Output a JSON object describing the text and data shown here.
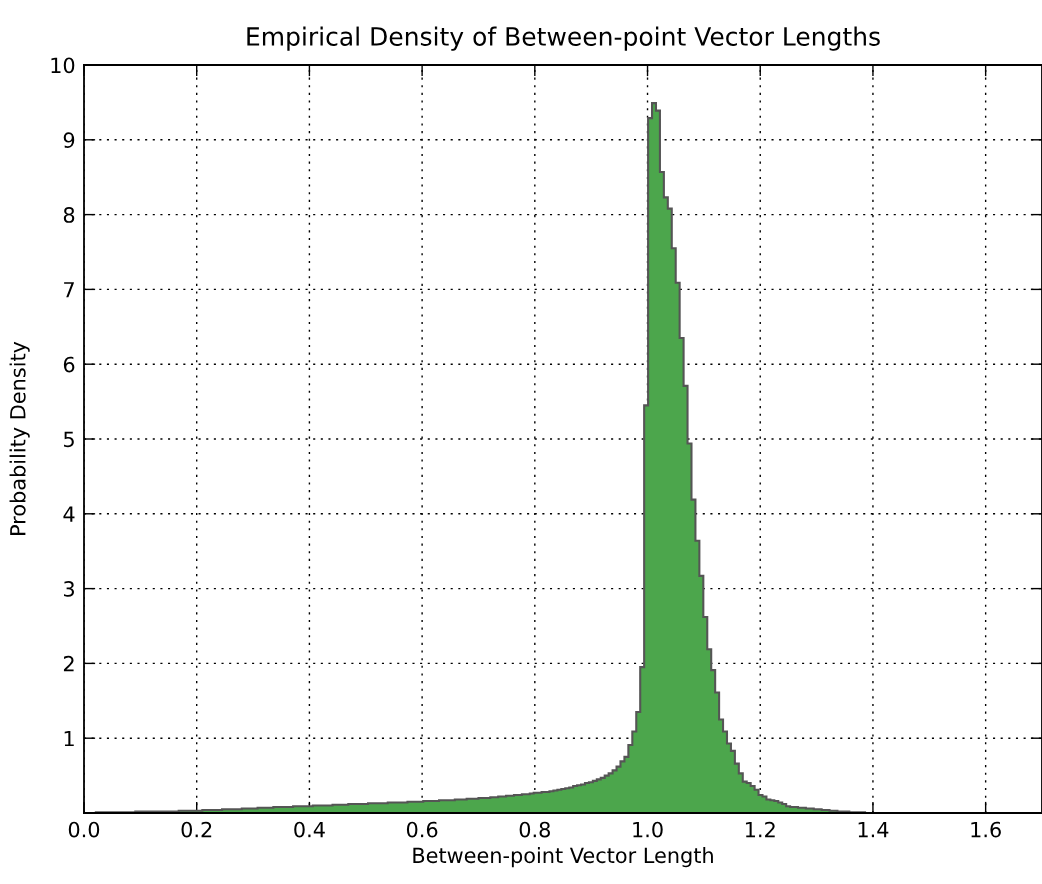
{
  "chart_data": {
    "type": "histogram",
    "title": "Empirical Density of Between-point Vector Lengths",
    "xlabel": "Between-point Vector Length",
    "ylabel": "Probability Density",
    "color": "#4ca64c",
    "grid": true,
    "xlim": [
      0,
      1.7
    ],
    "ylim": [
      0,
      10
    ],
    "xticks": [
      {
        "value": 0,
        "label": "0.0"
      },
      {
        "value": 0.2,
        "label": "0.2"
      },
      {
        "value": 0.4,
        "label": "0.4"
      },
      {
        "value": 0.6,
        "label": "0.6"
      },
      {
        "value": 0.8,
        "label": "0.8"
      },
      {
        "value": 1.0,
        "label": "1.0"
      },
      {
        "value": 1.2,
        "label": "1.2"
      },
      {
        "value": 1.4,
        "label": "1.4"
      },
      {
        "value": 1.6,
        "label": "1.6"
      }
    ],
    "yticks": [
      {
        "value": 0,
        "label": null
      },
      1,
      2,
      3,
      4,
      5,
      6,
      7,
      8,
      9,
      10
    ],
    "bins": [
      0,
      0.007,
      0.014,
      0.021,
      0.028,
      0.035,
      0.042,
      0.049,
      0.056,
      0.063,
      0.07,
      0.077,
      0.084,
      0.091,
      0.098,
      0.105,
      0.112,
      0.119,
      0.126,
      0.133,
      0.14,
      0.147,
      0.154,
      0.161,
      0.168,
      0.175,
      0.182,
      0.189,
      0.196,
      0.203,
      0.21,
      0.217,
      0.224,
      0.231,
      0.238,
      0.245,
      0.252,
      0.259,
      0.266,
      0.273,
      0.28,
      0.287,
      0.294,
      0.301,
      0.308,
      0.315,
      0.322,
      0.329,
      0.336,
      0.343,
      0.35,
      0.357,
      0.364,
      0.371,
      0.378,
      0.385,
      0.392,
      0.399,
      0.406,
      0.413,
      0.42,
      0.427,
      0.434,
      0.441,
      0.448,
      0.455,
      0.462,
      0.469,
      0.476,
      0.483,
      0.49,
      0.497,
      0.504,
      0.511,
      0.518,
      0.525,
      0.532,
      0.539,
      0.546,
      0.553,
      0.56,
      0.567,
      0.574,
      0.581,
      0.588,
      0.595,
      0.602,
      0.609,
      0.616,
      0.623,
      0.63,
      0.637,
      0.644,
      0.651,
      0.658,
      0.665,
      0.672,
      0.679,
      0.686,
      0.693,
      0.7,
      0.707,
      0.714,
      0.721,
      0.728,
      0.735,
      0.742,
      0.749,
      0.756,
      0.763,
      0.77,
      0.777,
      0.784,
      0.791,
      0.798,
      0.805,
      0.812,
      0.819,
      0.826,
      0.833,
      0.84,
      0.847,
      0.854,
      0.861,
      0.868,
      0.875,
      0.882,
      0.889,
      0.896,
      0.903,
      0.91,
      0.917,
      0.924,
      0.931,
      0.938,
      0.945,
      0.952,
      0.959,
      0.966,
      0.973,
      0.98,
      0.987,
      0.994,
      1.001,
      1.008,
      1.015,
      1.022,
      1.029,
      1.036,
      1.043,
      1.05,
      1.057,
      1.064,
      1.071,
      1.078,
      1.085,
      1.092,
      1.099,
      1.106,
      1.113,
      1.12,
      1.127,
      1.134,
      1.141,
      1.148,
      1.155,
      1.162,
      1.169,
      1.176,
      1.183,
      1.19,
      1.197,
      1.204,
      1.211,
      1.218,
      1.225,
      1.232,
      1.239,
      1.246,
      1.253,
      1.26,
      1.267,
      1.274,
      1.281,
      1.288,
      1.295,
      1.302,
      1.309,
      1.316,
      1.323,
      1.33,
      1.337,
      1.344,
      1.351,
      1.358,
      1.365,
      1.372,
      1.379,
      1.386,
      1.393,
      1.4
    ],
    "values": [
      0.0,
      0.0,
      0.0,
      0.01,
      0.01,
      0.01,
      0.01,
      0.01,
      0.01,
      0.01,
      0.01,
      0.01,
      0.01,
      0.02,
      0.02,
      0.02,
      0.02,
      0.02,
      0.02,
      0.02,
      0.02,
      0.02,
      0.02,
      0.02,
      0.03,
      0.03,
      0.03,
      0.03,
      0.03,
      0.03,
      0.04,
      0.04,
      0.04,
      0.04,
      0.04,
      0.05,
      0.05,
      0.05,
      0.05,
      0.05,
      0.06,
      0.06,
      0.06,
      0.06,
      0.07,
      0.07,
      0.07,
      0.07,
      0.08,
      0.08,
      0.08,
      0.08,
      0.08,
      0.09,
      0.09,
      0.09,
      0.09,
      0.09,
      0.1,
      0.1,
      0.1,
      0.1,
      0.1,
      0.11,
      0.11,
      0.11,
      0.11,
      0.12,
      0.12,
      0.12,
      0.12,
      0.12,
      0.13,
      0.13,
      0.13,
      0.13,
      0.13,
      0.14,
      0.14,
      0.14,
      0.14,
      0.14,
      0.15,
      0.15,
      0.15,
      0.15,
      0.16,
      0.16,
      0.16,
      0.16,
      0.17,
      0.17,
      0.17,
      0.17,
      0.18,
      0.18,
      0.18,
      0.19,
      0.19,
      0.19,
      0.2,
      0.2,
      0.2,
      0.21,
      0.21,
      0.22,
      0.22,
      0.23,
      0.23,
      0.24,
      0.24,
      0.25,
      0.25,
      0.26,
      0.27,
      0.27,
      0.28,
      0.28,
      0.29,
      0.3,
      0.31,
      0.32,
      0.33,
      0.34,
      0.36,
      0.37,
      0.38,
      0.4,
      0.41,
      0.43,
      0.45,
      0.47,
      0.5,
      0.53,
      0.57,
      0.62,
      0.69,
      0.75,
      0.91,
      1.09,
      1.35,
      1.95,
      5.45,
      9.29,
      9.49,
      9.39,
      8.57,
      8.23,
      8.08,
      7.55,
      7.09,
      6.35,
      5.71,
      4.94,
      4.19,
      3.64,
      3.17,
      2.62,
      2.19,
      1.91,
      1.61,
      1.25,
      1.09,
      0.93,
      0.83,
      0.66,
      0.53,
      0.42,
      0.4,
      0.36,
      0.31,
      0.24,
      0.22,
      0.18,
      0.17,
      0.16,
      0.14,
      0.12,
      0.09,
      0.08,
      0.08,
      0.07,
      0.07,
      0.06,
      0.06,
      0.05,
      0.05,
      0.04,
      0.04,
      0.03,
      0.03,
      0.02,
      0.02,
      0.02,
      0.01,
      0.01,
      0.01,
      0.01,
      0.0,
      0.0
    ]
  }
}
